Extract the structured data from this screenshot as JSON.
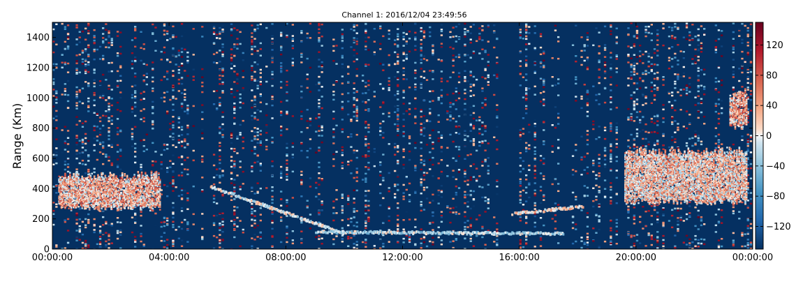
{
  "chart_data": {
    "type": "heatmap",
    "title": "Channel 1: 2016/12/04 23:49:56",
    "xlabel": "",
    "ylabel": "Range (Km)",
    "x_ticks": [
      "00:00:00",
      "04:00:00",
      "08:00:00",
      "12:00:00",
      "16:00:00",
      "20:00:00",
      "00:00:00"
    ],
    "xlim_hours": [
      0,
      24
    ],
    "y_ticks": [
      0,
      200,
      400,
      600,
      800,
      1000,
      1200,
      1400
    ],
    "ylim": [
      0,
      1500
    ],
    "colorbar": {
      "ticks": [
        -120,
        -80,
        -40,
        0,
        40,
        80,
        120
      ],
      "range": [
        -150,
        150
      ],
      "colormap": "RdBu_r"
    },
    "background_value": -150,
    "features": [
      {
        "name": "echo-00-04h",
        "t_start": 0.2,
        "t_end": 3.7,
        "r_low": 260,
        "r_high": 520,
        "level": 30
      },
      {
        "name": "trace-05-10h",
        "t_start": 5.4,
        "t_end": 10.0,
        "r_start": 420,
        "r_end": 110,
        "level": 0
      },
      {
        "name": "trace-09-18h",
        "t_start": 9.0,
        "t_end": 17.5,
        "r_start": 120,
        "r_end": 110,
        "level": -20
      },
      {
        "name": "trace-16-18h",
        "t_start": 15.7,
        "t_end": 18.2,
        "r_start": 240,
        "r_end": 290,
        "level": 10
      },
      {
        "name": "echo-19-24h",
        "t_start": 19.6,
        "t_end": 23.8,
        "r_low": 300,
        "r_high": 680,
        "level": 20
      },
      {
        "name": "echo-23h-top",
        "t_start": 23.2,
        "t_end": 23.8,
        "r_low": 800,
        "r_high": 1070,
        "level": 35
      }
    ],
    "grid": false
  },
  "colors": {
    "background": "#053061",
    "axis": "#000000"
  }
}
